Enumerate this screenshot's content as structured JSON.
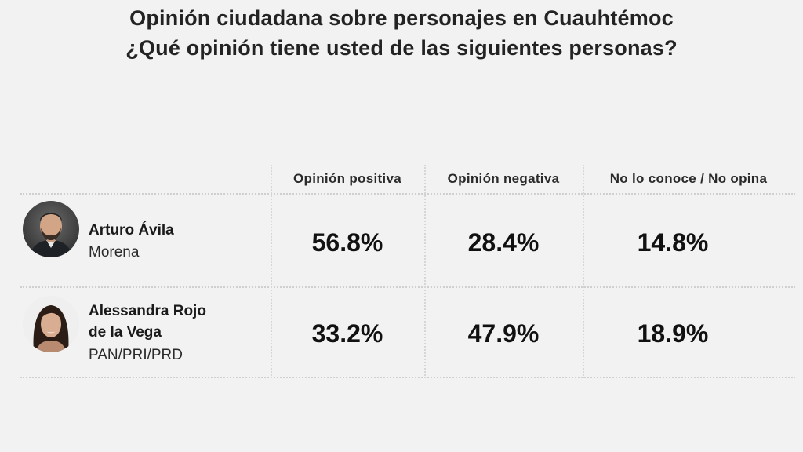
{
  "title": {
    "line1": "Opinión ciudadana sobre personajes en Cuauhtémoc",
    "line2": "¿Qué opinión tiene usted de las siguientes personas?"
  },
  "chart_data": {
    "type": "table",
    "title": "Opinión ciudadana sobre personajes en Cuauhtémoc",
    "subtitle": "¿Qué opinión tiene usted de las siguientes personas?",
    "columns": [
      "Opinión positiva",
      "Opinión negativa",
      "No lo conoce / No opina"
    ],
    "rows": [
      {
        "name": "Arturo Ávila",
        "name_lines": [
          "Arturo Ávila"
        ],
        "party": "Morena",
        "values": [
          "56.8%",
          "28.4%",
          "14.8%"
        ],
        "numeric": [
          56.8,
          28.4,
          14.8
        ]
      },
      {
        "name": "Alessandra Rojo de la Vega",
        "name_lines": [
          "Alessandra Rojo",
          "de la Vega"
        ],
        "party": "PAN/PRI/PRD",
        "values": [
          "33.2%",
          "47.9%",
          "18.9%"
        ],
        "numeric": [
          33.2,
          47.9,
          18.9
        ]
      }
    ]
  },
  "icons": {
    "row1_avatar": "man-portrait-icon",
    "row2_avatar": "woman-portrait-icon"
  },
  "colors": {
    "background": "#f2f2f2",
    "text": "#151515",
    "divider": "#cfcfcf"
  }
}
